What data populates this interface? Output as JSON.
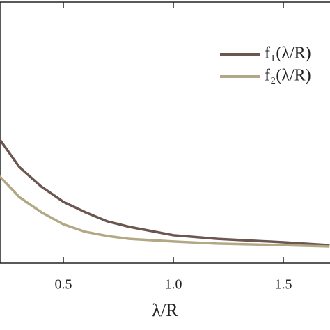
{
  "chart_data": {
    "type": "line",
    "xlabel": "λ/R",
    "x": [
      0.21,
      0.3,
      0.4,
      0.5,
      0.6,
      0.7,
      0.8,
      1.0,
      1.2,
      1.5,
      1.71
    ],
    "series": [
      {
        "name": "f₁(λ/R)",
        "color": "#6b5650",
        "values": [
          0.475,
          0.368,
          0.293,
          0.235,
          0.195,
          0.16,
          0.139,
          0.107,
          0.093,
          0.08,
          0.069
        ]
      },
      {
        "name": "f₂(λ/R)",
        "color": "#b2a883",
        "values": [
          0.333,
          0.253,
          0.195,
          0.149,
          0.12,
          0.104,
          0.093,
          0.083,
          0.075,
          0.069,
          0.064
        ]
      }
    ],
    "xlim": [
      0.212,
      1.712
    ],
    "ylim": [
      0,
      1
    ],
    "xticks": [
      0.5,
      {
        "value": 1.0,
        "label": "1.0"
      },
      1.5
    ],
    "legend": "upper right"
  }
}
